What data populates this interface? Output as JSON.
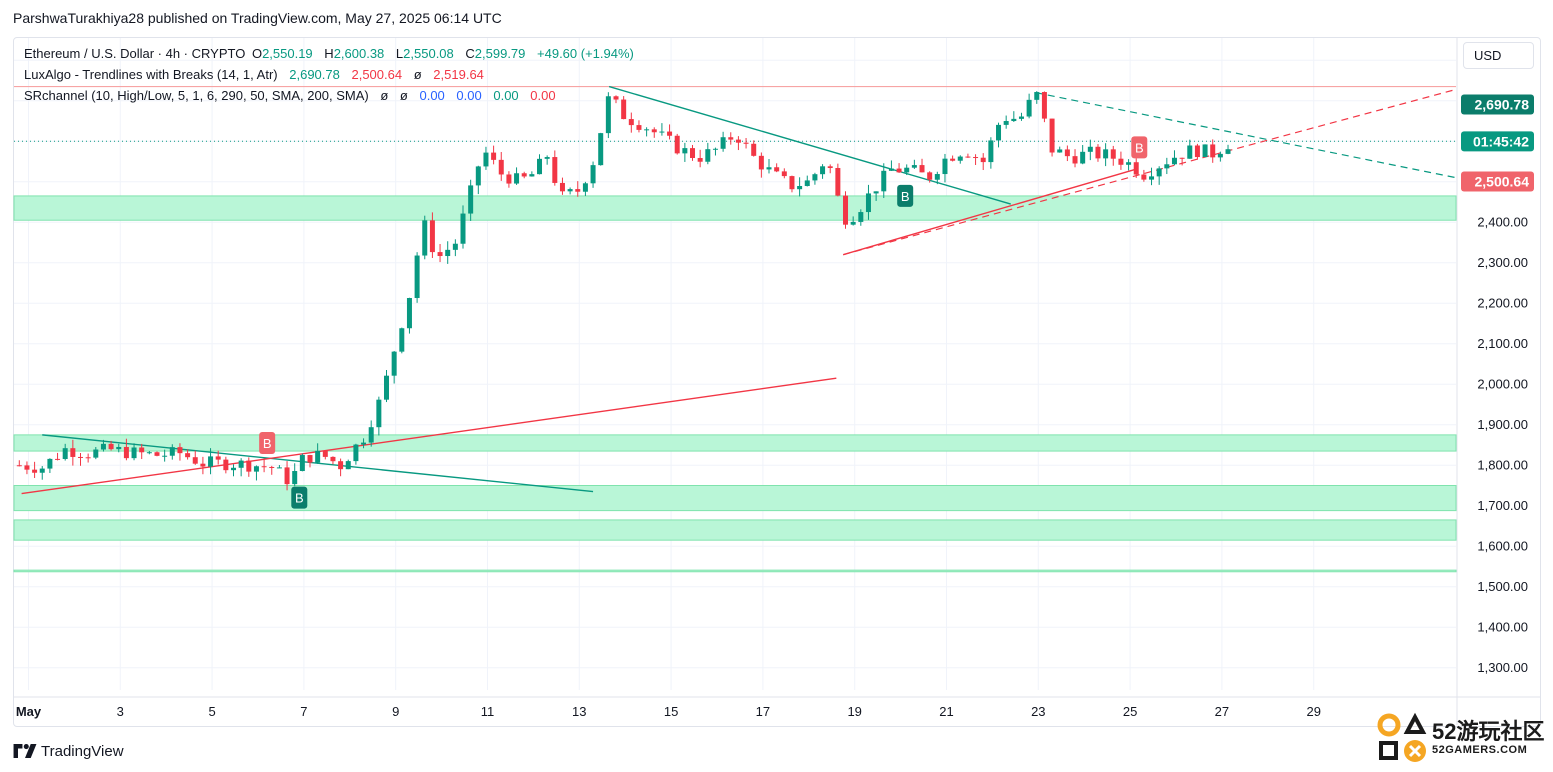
{
  "publisher_line": "ParshwaTurakhiya28 published on TradingView.com, May 27, 2025 06:14 UTC",
  "legend": {
    "symbol": "Ethereum / U.S. Dollar · 4h · CRYPTO",
    "o_label": "O",
    "o_value": "2,550.19",
    "h_label": "H",
    "h_value": "2,600.38",
    "l_label": "L",
    "l_value": "2,550.08",
    "c_label": "C",
    "c_value": "2,599.79",
    "change": "+49.60 (+1.94%)",
    "ind1_name": "LuxAlgo - Trendlines with Breaks (14, 1, Atr)",
    "ind1_v1": "2,690.78",
    "ind1_v2": "2,500.64",
    "ind1_v3": "ø",
    "ind1_v4": "2,519.64",
    "ind2_name": "SRchannel (10, High/Low, 5, 1, 6, 290, 50, SMA, 200, SMA)",
    "ind2_v1": "ø",
    "ind2_v2": "ø",
    "ind2_v3": "0.00",
    "ind2_v4": "0.00",
    "ind2_v5": "0.00",
    "ind2_v6": "0.00"
  },
  "currency_button": "USD",
  "price_tags": {
    "resistance": "2,690.78",
    "countdown": "01:45:42",
    "support": "2,500.64"
  },
  "brand": "TradingView",
  "watermark": {
    "text": "52游玩社区",
    "sub": "52GAMERS.COM"
  },
  "colors": {
    "up": "#089981",
    "down": "#f23645",
    "zone": "#b9f6d7",
    "zone_line": "#7fe3ad",
    "trend_down": "#089981",
    "trend_up": "#f23645",
    "grid": "#f0f3fa",
    "axis_text": "#131722"
  },
  "chart_data": {
    "type": "candlestick",
    "title": "Ethereum / U.S. Dollar · 4h · CRYPTO",
    "timeframe": "4h",
    "currency": "USD",
    "ylim": [
      1250,
      2850
    ],
    "yticks": [
      1300,
      1400,
      1500,
      1600,
      1700,
      1800,
      1900,
      2000,
      2100,
      2200,
      2300,
      2400,
      2500,
      2600,
      2700,
      2800
    ],
    "ytick_labels": [
      "1,300.00",
      "1,400.00",
      "1,500.00",
      "1,600.00",
      "1,700.00",
      "1,800.00",
      "1,900.00",
      "2,000.00",
      "2,100.00",
      "2,200.00",
      "2,300.00",
      "2,400.00",
      "2,500.00",
      "2,600.00",
      "2,700.00",
      "2,800.00"
    ],
    "x_day_range": [
      0.75,
      32.1
    ],
    "xticks": [
      {
        "day": 1,
        "label": "May"
      },
      {
        "day": 3,
        "label": "3"
      },
      {
        "day": 5,
        "label": "5"
      },
      {
        "day": 7,
        "label": "7"
      },
      {
        "day": 9,
        "label": "9"
      },
      {
        "day": 11,
        "label": "11"
      },
      {
        "day": 13,
        "label": "13"
      },
      {
        "day": 15,
        "label": "15"
      },
      {
        "day": 17,
        "label": "17"
      },
      {
        "day": 19,
        "label": "19"
      },
      {
        "day": 21,
        "label": "21"
      },
      {
        "day": 23,
        "label": "23"
      },
      {
        "day": 25,
        "label": "25"
      },
      {
        "day": 27,
        "label": "27"
      },
      {
        "day": 29,
        "label": "29"
      }
    ],
    "close_path": [
      [
        0.8,
        1800
      ],
      [
        1.3,
        1795
      ],
      [
        1.8,
        1840
      ],
      [
        2.3,
        1830
      ],
      [
        2.8,
        1838
      ],
      [
        3.3,
        1830
      ],
      [
        3.8,
        1825
      ],
      [
        4.3,
        1830
      ],
      [
        4.8,
        1805
      ],
      [
        5.3,
        1805
      ],
      [
        5.8,
        1802
      ],
      [
        6.3,
        1795
      ],
      [
        6.7,
        1760
      ],
      [
        7.0,
        1820
      ],
      [
        7.4,
        1825
      ],
      [
        7.8,
        1800
      ],
      [
        8.3,
        1870
      ],
      [
        8.7,
        1970
      ],
      [
        9.0,
        2100
      ],
      [
        9.3,
        2220
      ],
      [
        9.6,
        2400
      ],
      [
        9.9,
        2310
      ],
      [
        10.3,
        2350
      ],
      [
        10.6,
        2460
      ],
      [
        10.9,
        2580
      ],
      [
        11.3,
        2520
      ],
      [
        11.7,
        2500
      ],
      [
        12.0,
        2520
      ],
      [
        12.3,
        2565
      ],
      [
        12.6,
        2460
      ],
      [
        13.0,
        2480
      ],
      [
        13.3,
        2550
      ],
      [
        13.65,
        2710
      ],
      [
        14.0,
        2660
      ],
      [
        14.4,
        2640
      ],
      [
        14.8,
        2610
      ],
      [
        15.2,
        2580
      ],
      [
        15.6,
        2560
      ],
      [
        16.0,
        2580
      ],
      [
        16.4,
        2620
      ],
      [
        16.8,
        2560
      ],
      [
        17.2,
        2520
      ],
      [
        17.6,
        2490
      ],
      [
        18.0,
        2500
      ],
      [
        18.4,
        2560
      ],
      [
        18.75,
        2410
      ],
      [
        19.0,
        2420
      ],
      [
        19.4,
        2480
      ],
      [
        19.8,
        2530
      ],
      [
        20.2,
        2530
      ],
      [
        20.6,
        2510
      ],
      [
        21.0,
        2560
      ],
      [
        21.4,
        2580
      ],
      [
        21.8,
        2550
      ],
      [
        22.2,
        2660
      ],
      [
        22.6,
        2655
      ],
      [
        22.95,
        2720
      ],
      [
        23.3,
        2580
      ],
      [
        23.7,
        2560
      ],
      [
        24.1,
        2570
      ],
      [
        24.5,
        2565
      ],
      [
        24.9,
        2550
      ],
      [
        25.3,
        2520
      ],
      [
        25.6,
        2540
      ],
      [
        26.0,
        2565
      ],
      [
        26.4,
        2580
      ],
      [
        26.8,
        2570
      ],
      [
        27.2,
        2600
      ]
    ],
    "series": [
      {
        "name": "2,690.78",
        "type": "trendline",
        "style": "dashed",
        "points": [
          [
            22.95,
            2720
          ],
          [
            32.1,
            2510
          ]
        ]
      },
      {
        "name": "2,500.64",
        "type": "trendline",
        "style": "dashed",
        "points": [
          [
            18.75,
            2320
          ],
          [
            32.1,
            2728
          ]
        ]
      }
    ],
    "trendlines": [
      {
        "direction": "down",
        "style": "solid",
        "points": [
          [
            1.3,
            1875
          ],
          [
            13.3,
            1735
          ]
        ]
      },
      {
        "direction": "up",
        "style": "solid",
        "points": [
          [
            0.85,
            1730
          ],
          [
            18.6,
            2015
          ]
        ]
      },
      {
        "direction": "down",
        "style": "solid",
        "points": [
          [
            13.65,
            2735
          ],
          [
            22.4,
            2445
          ]
        ]
      },
      {
        "direction": "up",
        "style": "solid",
        "points": [
          [
            18.75,
            2320
          ],
          [
            25.1,
            2530
          ]
        ]
      }
    ],
    "zones": [
      {
        "from": 2405,
        "to": 2465
      },
      {
        "from": 1835,
        "to": 1875
      },
      {
        "from": 1688,
        "to": 1750
      },
      {
        "from": 1615,
        "to": 1665
      },
      {
        "from": 1537,
        "to": 1541
      }
    ],
    "resistance_line": 2735,
    "last_price_line": 2600,
    "markers": [
      {
        "label": "B",
        "day": 6.2,
        "price": 1855,
        "color": "down"
      },
      {
        "label": "B",
        "day": 6.9,
        "price": 1720,
        "color": "up"
      },
      {
        "label": "B",
        "day": 20.1,
        "price": 2465,
        "color": "up"
      },
      {
        "label": "B",
        "day": 25.2,
        "price": 2585,
        "color": "down"
      }
    ]
  }
}
